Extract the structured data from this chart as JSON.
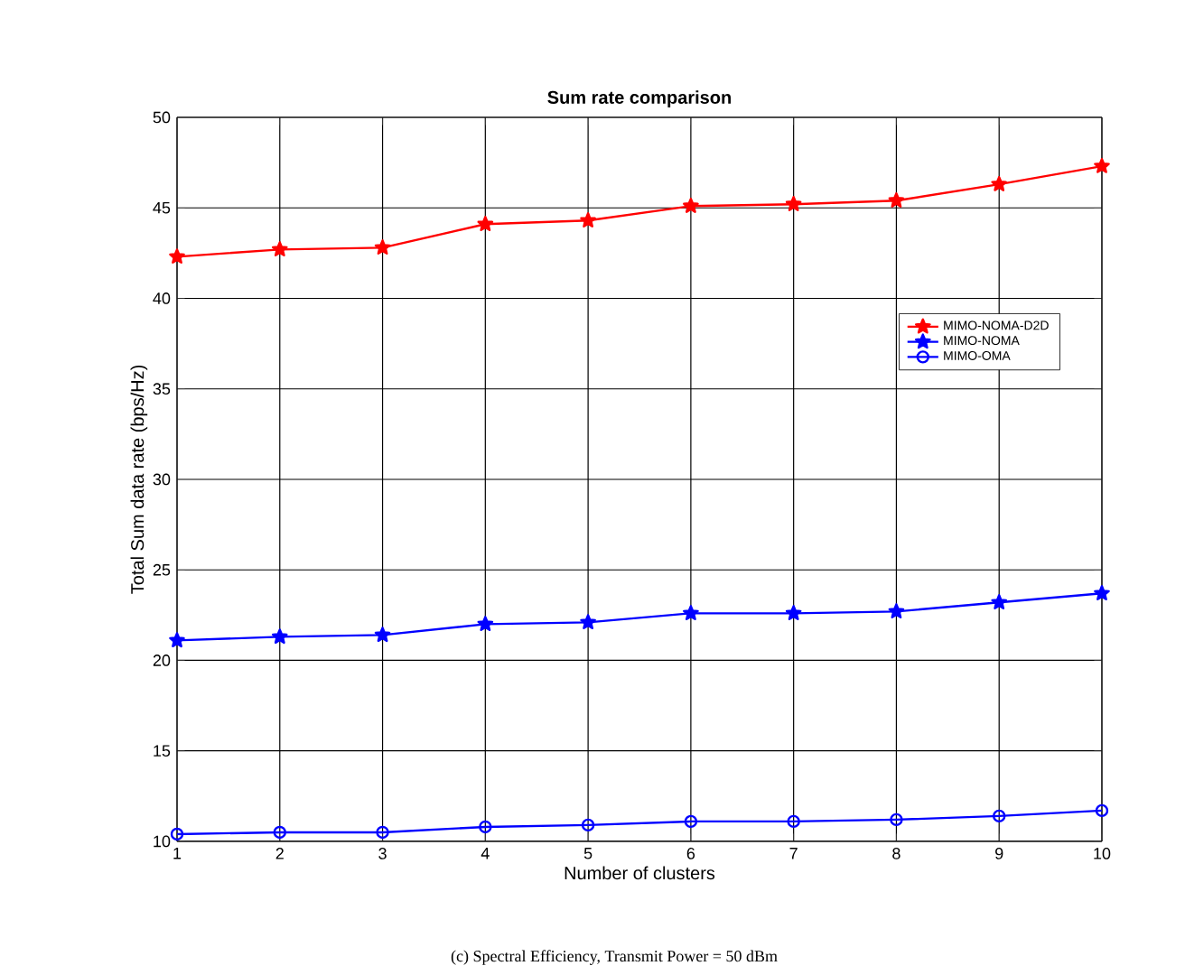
{
  "chart_data": {
    "type": "line",
    "title": "Sum rate comparison",
    "xlabel": "Number of clusters",
    "ylabel": "Total Sum data rate (bps/Hz)",
    "annotations": [
      "(c) Spectral Efficiency, Transmit Power = 50 dBm"
    ],
    "x": [
      1,
      2,
      3,
      4,
      5,
      6,
      7,
      8,
      9,
      10
    ],
    "series": [
      {
        "name": "MIMO-NOMA-D2D",
        "color": "#ff0000",
        "marker": "star",
        "values": [
          42.3,
          42.7,
          42.8,
          44.1,
          44.3,
          45.1,
          45.2,
          45.4,
          46.3,
          47.3
        ]
      },
      {
        "name": "MIMO-NOMA",
        "color": "#0000ff",
        "marker": "star",
        "values": [
          21.1,
          21.3,
          21.4,
          22.0,
          22.1,
          22.6,
          22.6,
          22.7,
          23.2,
          23.7
        ]
      },
      {
        "name": "MIMO-OMA",
        "color": "#0000ff",
        "marker": "circle",
        "values": [
          10.4,
          10.5,
          10.5,
          10.8,
          10.9,
          11.1,
          11.1,
          11.2,
          11.4,
          11.7
        ]
      }
    ],
    "xlim": [
      1,
      10
    ],
    "xticks": [
      1,
      2,
      3,
      4,
      5,
      6,
      7,
      8,
      9,
      10
    ],
    "ylim": [
      10,
      50
    ],
    "yticks": [
      10,
      15,
      20,
      25,
      30,
      35,
      40,
      45,
      50
    ],
    "grid": true,
    "legend": "right",
    "line_style": "solid"
  }
}
